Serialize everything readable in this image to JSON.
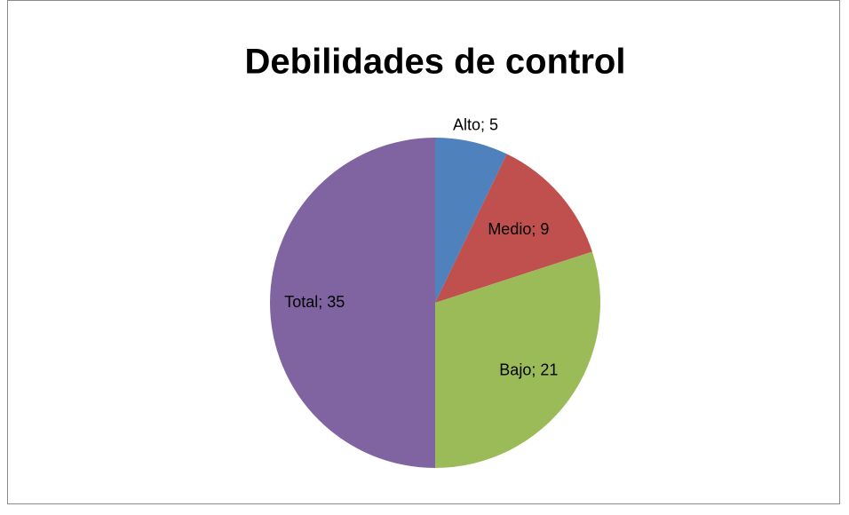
{
  "chart_data": {
    "type": "pie",
    "title": "Debilidades de control",
    "values": [
      5,
      9,
      21,
      35
    ],
    "value_labels": [
      "Alto; 5",
      "Medio; 9",
      "Bajo; 21",
      "Total; 35"
    ],
    "colors": [
      "#4f81bd",
      "#c0504d",
      "#9bbb59",
      "#8064a2"
    ]
  }
}
